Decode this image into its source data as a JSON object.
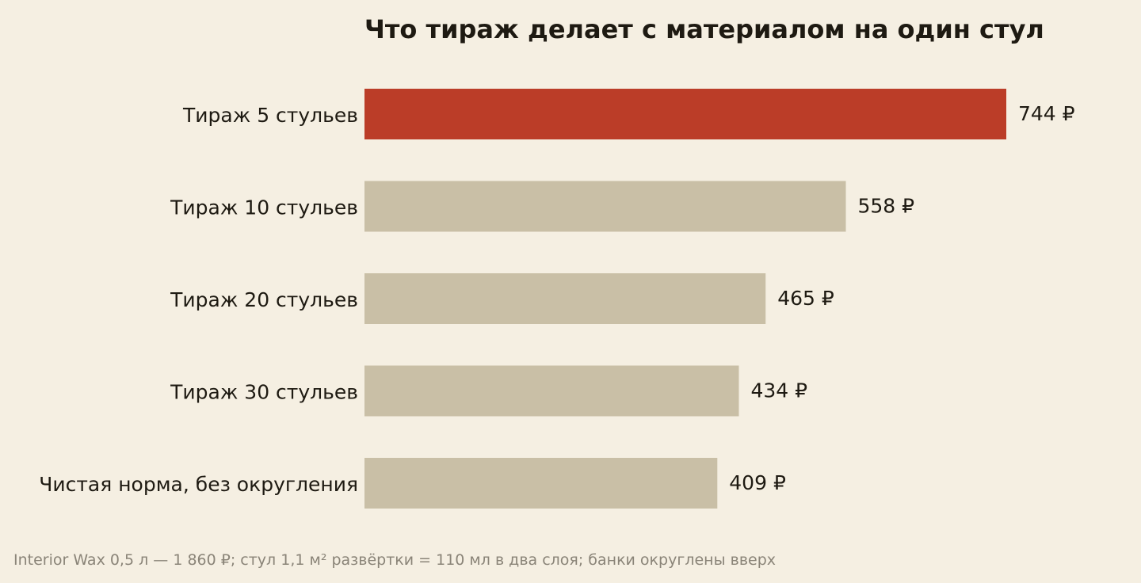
{
  "chart_data": {
    "type": "bar",
    "orientation": "horizontal",
    "title": "Что тираж делает с материалом на один стул",
    "categories": [
      "Тираж 5 стульев",
      "Тираж 10 стульев",
      "Тираж 20 стульев",
      "Тираж 30 стульев",
      "Чистая норма, без округления"
    ],
    "values": [
      744,
      558,
      465,
      434,
      409
    ],
    "value_labels": [
      "744 ₽",
      "558 ₽",
      "465 ₽",
      "434 ₽",
      "409 ₽"
    ],
    "highlight_index": 0,
    "colors": {
      "highlight": "#bb3d28",
      "default": "#c9bfa6",
      "background": "#f5efe2",
      "text": "#1e1a12",
      "note": "#8a8478"
    },
    "xlim": [
      0,
      744
    ],
    "grid": false,
    "legend": "none"
  },
  "footnote": "Interior Wax 0,5 л — 1 860 ₽; стул 1,1 м² развёртки = 110 мл в два слоя; банки округлены вверх"
}
